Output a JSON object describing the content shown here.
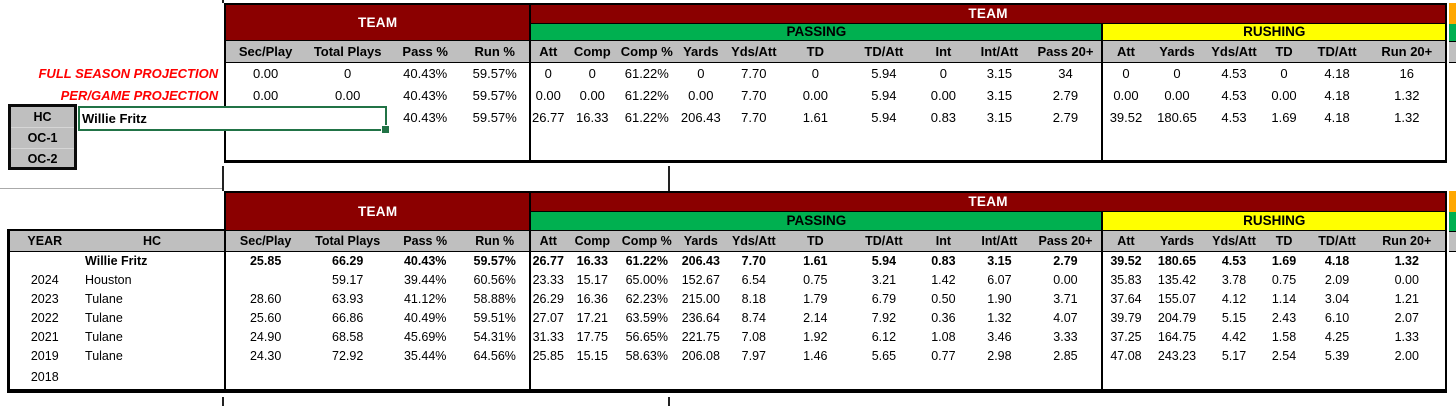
{
  "app": {
    "type": "spreadsheet-stat-sheet"
  },
  "colors": {
    "section_header_red": "#8B0000",
    "passing_green": "#00B050",
    "rushing_yellow": "#FFFF00",
    "column_header_gray": "#BFBFBF",
    "cutoff_section_orange": "#FFA800",
    "selection_border_green": "#217346",
    "projection_label_red": "#FF0000"
  },
  "sections": {
    "team": "TEAM",
    "team_wide": "TEAM",
    "passing": "PASSING",
    "rushing": "RUSHING"
  },
  "columns": {
    "team": [
      "Sec/Play",
      "Total Plays",
      "Pass %",
      "Run %"
    ],
    "passing": [
      "Att",
      "Comp",
      "Comp %",
      "Yards",
      "Yds/Att",
      "TD",
      "TD/Att",
      "Int",
      "Int/Att",
      "Pass 20+"
    ],
    "rushing": [
      "Att",
      "Yards",
      "Yds/Att",
      "TD",
      "TD/Att",
      "Run 20+"
    ]
  },
  "projection_table": {
    "coach_slots": [
      "HC",
      "OC-1",
      "OC-2"
    ],
    "selected_cell": {
      "value": "Willie Fritz"
    },
    "rows": [
      {
        "label": "FULL SEASON PROJECTION",
        "team": [
          "0.00",
          "0",
          "40.43%",
          "59.57%"
        ],
        "passing": [
          "0",
          "0",
          "61.22%",
          "0",
          "7.70",
          "0",
          "5.94",
          "0",
          "3.15",
          "34"
        ],
        "rushing": [
          "0",
          "0",
          "4.53",
          "0",
          "4.18",
          "16"
        ]
      },
      {
        "label": "PER/GAME PROJECTION",
        "team": [
          "0.00",
          "0.00",
          "40.43%",
          "59.57%"
        ],
        "passing": [
          "0.00",
          "0.00",
          "61.22%",
          "0.00",
          "7.70",
          "0.00",
          "5.94",
          "0.00",
          "3.15",
          "2.79"
        ],
        "rushing": [
          "0.00",
          "0.00",
          "4.53",
          "0.00",
          "4.18",
          "1.32"
        ]
      },
      {
        "label": "",
        "team": [
          "",
          "",
          "40.43%",
          "59.57%"
        ],
        "passing": [
          "26.77",
          "16.33",
          "61.22%",
          "206.43",
          "7.70",
          "1.61",
          "5.94",
          "0.83",
          "3.15",
          "2.79"
        ],
        "rushing": [
          "39.52",
          "180.65",
          "4.53",
          "1.69",
          "4.18",
          "1.32"
        ]
      }
    ]
  },
  "history_table": {
    "year_header": "YEAR",
    "hc_header": "HC",
    "rows": [
      {
        "year": "",
        "hc": "Willie Fritz",
        "bold": true,
        "team": [
          "25.85",
          "66.29",
          "40.43%",
          "59.57%"
        ],
        "passing": [
          "26.77",
          "16.33",
          "61.22%",
          "206.43",
          "7.70",
          "1.61",
          "5.94",
          "0.83",
          "3.15",
          "2.79"
        ],
        "rushing": [
          "39.52",
          "180.65",
          "4.53",
          "1.69",
          "4.18",
          "1.32"
        ]
      },
      {
        "year": "2024",
        "hc": "Houston",
        "bold": false,
        "team": [
          "",
          "59.17",
          "39.44%",
          "60.56%"
        ],
        "passing": [
          "23.33",
          "15.17",
          "65.00%",
          "152.67",
          "6.54",
          "0.75",
          "3.21",
          "1.42",
          "6.07",
          "0.00"
        ],
        "rushing": [
          "35.83",
          "135.42",
          "3.78",
          "0.75",
          "2.09",
          "0.00"
        ]
      },
      {
        "year": "2023",
        "hc": "Tulane",
        "bold": false,
        "team": [
          "28.60",
          "63.93",
          "41.12%",
          "58.88%"
        ],
        "passing": [
          "26.29",
          "16.36",
          "62.23%",
          "215.00",
          "8.18",
          "1.79",
          "6.79",
          "0.50",
          "1.90",
          "3.71"
        ],
        "rushing": [
          "37.64",
          "155.07",
          "4.12",
          "1.14",
          "3.04",
          "1.21"
        ]
      },
      {
        "year": "2022",
        "hc": "Tulane",
        "bold": false,
        "team": [
          "25.60",
          "66.86",
          "40.49%",
          "59.51%"
        ],
        "passing": [
          "27.07",
          "17.21",
          "63.59%",
          "236.64",
          "8.74",
          "2.14",
          "7.92",
          "0.36",
          "1.32",
          "4.07"
        ],
        "rushing": [
          "39.79",
          "204.79",
          "5.15",
          "2.43",
          "6.10",
          "2.07"
        ]
      },
      {
        "year": "2021",
        "hc": "Tulane",
        "bold": false,
        "team": [
          "24.90",
          "68.58",
          "45.69%",
          "54.31%"
        ],
        "passing": [
          "31.33",
          "17.75",
          "56.65%",
          "221.75",
          "7.08",
          "1.92",
          "6.12",
          "1.08",
          "3.46",
          "3.33"
        ],
        "rushing": [
          "37.25",
          "164.75",
          "4.42",
          "1.58",
          "4.25",
          "1.33"
        ]
      },
      {
        "year": "2019",
        "hc": "Tulane",
        "bold": false,
        "team": [
          "24.30",
          "72.92",
          "35.44%",
          "64.56%"
        ],
        "passing": [
          "25.85",
          "15.15",
          "58.63%",
          "206.08",
          "7.97",
          "1.46",
          "5.65",
          "0.77",
          "2.98",
          "2.85"
        ],
        "rushing": [
          "47.08",
          "243.23",
          "5.17",
          "2.54",
          "5.39",
          "2.00"
        ]
      },
      {
        "year": "2018",
        "hc": "",
        "bold": false,
        "team": [
          "",
          "",
          "",
          ""
        ],
        "passing": [
          "",
          "",
          "",
          "",
          "",
          "",
          "",
          "",
          "",
          ""
        ],
        "rushing": [
          "",
          "",
          "",
          "",
          "",
          ""
        ]
      }
    ]
  }
}
